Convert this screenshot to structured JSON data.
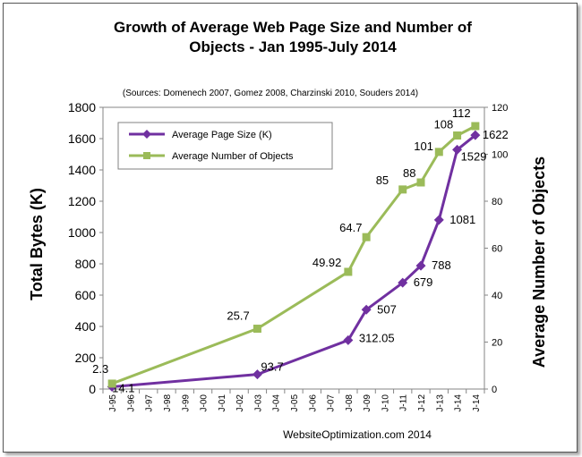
{
  "chart_data": {
    "type": "line",
    "title_line1": "Growth of Average Web Page Size and Number of",
    "title_line2": "Objects - Jan 1995-July 2014",
    "subtitle": "(Sources: Domenech 2007, Gomez 2008, Charzinski 2010, Souders 2014)",
    "ylabel": "Total Bytes (K)",
    "y2label": "Average Number of Objects",
    "footer": "WebsiteOptimization.com 2014",
    "ylim": [
      0,
      1800
    ],
    "y2lim": [
      0,
      120
    ],
    "yticks": [
      0,
      200,
      400,
      600,
      800,
      1000,
      1200,
      1400,
      1600,
      1800
    ],
    "y2ticks": [
      0,
      20,
      40,
      60,
      80,
      100,
      120
    ],
    "categories": [
      "J-95",
      "J-96",
      "J-97",
      "J-98",
      "J-99",
      "J-00",
      "J-01",
      "J-02",
      "J-03",
      "J-04",
      "J-05",
      "J-06",
      "J-07",
      "J-08",
      "J-09",
      "J-10",
      "J-11",
      "J-12",
      "J-13",
      "J-14",
      "J-14"
    ],
    "legend_position": "top-left",
    "series": [
      {
        "name": "Average Page Size (K)",
        "axis": "left",
        "color": "#7030A0",
        "marker": "diamond",
        "points": [
          {
            "i": 0,
            "value": 14.1,
            "label": "14.1"
          },
          {
            "i": 8,
            "value": 93.7,
            "label": "93.7"
          },
          {
            "i": 13,
            "value": 312.05,
            "label": "312.05"
          },
          {
            "i": 14,
            "value": 507,
            "label": "507"
          },
          {
            "i": 16,
            "value": 679,
            "label": "679"
          },
          {
            "i": 17,
            "value": 788,
            "label": "788"
          },
          {
            "i": 18,
            "value": 1081,
            "label": "1081"
          },
          {
            "i": 19,
            "value": 1529,
            "label": "1529"
          },
          {
            "i": 20,
            "value": 1622,
            "label": "1622"
          }
        ]
      },
      {
        "name": "Average Number of Objects",
        "axis": "right",
        "color": "#9BBB59",
        "marker": "square",
        "points": [
          {
            "i": 0,
            "value": 2.3,
            "label": "2.3"
          },
          {
            "i": 8,
            "value": 25.7,
            "label": "25.7"
          },
          {
            "i": 13,
            "value": 49.92,
            "label": "49.92"
          },
          {
            "i": 14,
            "value": 64.7,
            "label": "64.7"
          },
          {
            "i": 16,
            "value": 85,
            "label": "85"
          },
          {
            "i": 17,
            "value": 88,
            "label": "88"
          },
          {
            "i": 18,
            "value": 101,
            "label": "101"
          },
          {
            "i": 19,
            "value": 108,
            "label": "108"
          },
          {
            "i": 20,
            "value": 112,
            "label": "112"
          }
        ]
      }
    ]
  }
}
